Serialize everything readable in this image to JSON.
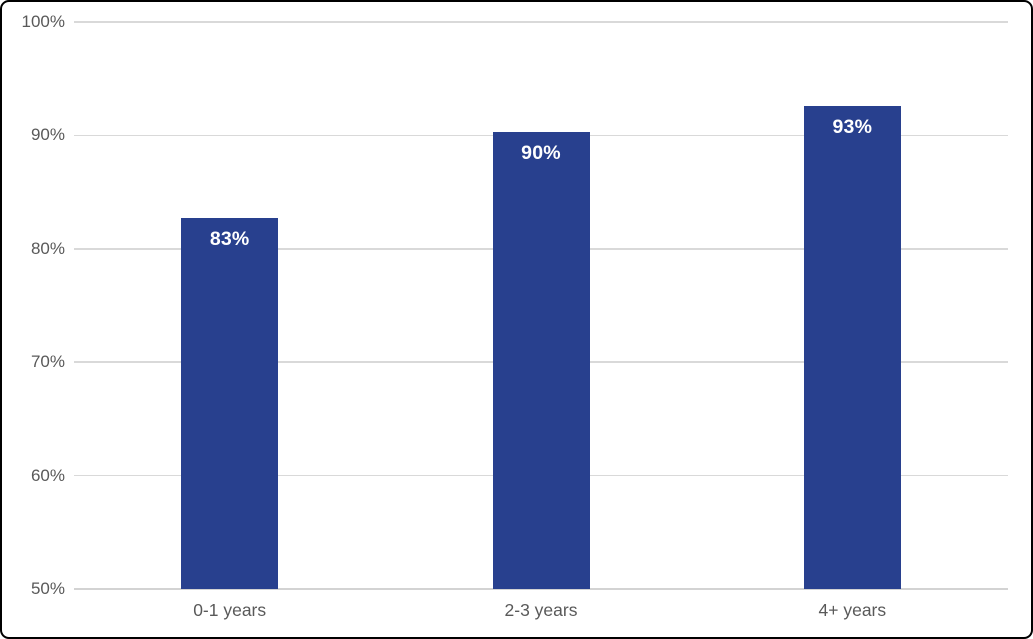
{
  "chart_data": {
    "type": "bar",
    "title": "",
    "xlabel": "",
    "ylabel": "",
    "categories": [
      "0-1 years",
      "2-3 years",
      "4+ years"
    ],
    "values": [
      83,
      90,
      93
    ],
    "bars": [
      {
        "category": "0-1 years",
        "value": 83,
        "label": "83%",
        "precise_top": 82.7
      },
      {
        "category": "2-3 years",
        "value": 90,
        "label": "90%",
        "precise_top": 90.3
      },
      {
        "category": "4+ years",
        "value": 93,
        "label": "93%",
        "precise_top": 92.6
      }
    ],
    "ylim": [
      50,
      100
    ],
    "yticks": [
      {
        "value": 50,
        "label": "50%"
      },
      {
        "value": 60,
        "label": "60%"
      },
      {
        "value": 70,
        "label": "70%"
      },
      {
        "value": 80,
        "label": "80%"
      },
      {
        "value": 90,
        "label": "90%"
      },
      {
        "value": 100,
        "label": "100%"
      }
    ],
    "grid": true,
    "legend": "none",
    "colors": {
      "bar": "#28408E",
      "bar_value_label": "#FFFFFF",
      "axis_text": "#595959",
      "gridline": "#D9D9D9",
      "baseline": "#D3D3D3",
      "frame_border": "#000000",
      "background": "#FFFFFF"
    }
  }
}
